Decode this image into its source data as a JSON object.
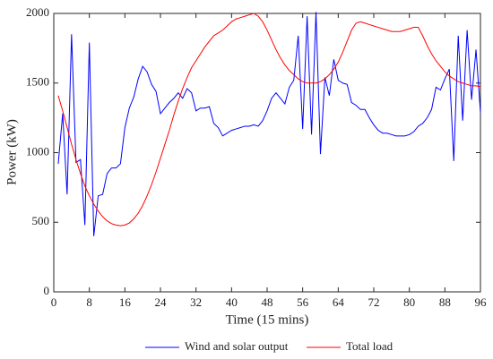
{
  "chart_data": {
    "type": "line",
    "xlabel": "Time (15 mins)",
    "ylabel": "Power (kW)",
    "x": [
      1,
      2,
      3,
      4,
      5,
      6,
      7,
      8,
      9,
      10,
      11,
      12,
      13,
      14,
      15,
      16,
      17,
      18,
      19,
      20,
      21,
      22,
      23,
      24,
      25,
      26,
      27,
      28,
      29,
      30,
      31,
      32,
      33,
      34,
      35,
      36,
      37,
      38,
      39,
      40,
      41,
      42,
      43,
      44,
      45,
      46,
      47,
      48,
      49,
      50,
      51,
      52,
      53,
      54,
      55,
      56,
      57,
      58,
      59,
      60,
      61,
      62,
      63,
      64,
      65,
      66,
      67,
      68,
      69,
      70,
      71,
      72,
      73,
      74,
      75,
      76,
      77,
      78,
      79,
      80,
      81,
      82,
      83,
      84,
      85,
      86,
      87,
      88,
      89,
      90,
      91,
      92,
      93,
      94,
      95,
      96
    ],
    "series": [
      {
        "name": "Wind and solar output",
        "color": "#0000ff",
        "values": [
          920,
          1280,
          700,
          1850,
          930,
          950,
          480,
          1790,
          400,
          690,
          700,
          850,
          890,
          890,
          920,
          1180,
          1320,
          1400,
          1530,
          1620,
          1580,
          1490,
          1440,
          1280,
          1320,
          1360,
          1390,
          1430,
          1390,
          1460,
          1430,
          1300,
          1320,
          1320,
          1330,
          1210,
          1180,
          1120,
          1140,
          1160,
          1170,
          1180,
          1190,
          1190,
          1200,
          1190,
          1230,
          1300,
          1390,
          1430,
          1390,
          1350,
          1470,
          1520,
          1840,
          1170,
          1980,
          1130,
          2010,
          990,
          1540,
          1410,
          1670,
          1520,
          1500,
          1490,
          1360,
          1340,
          1310,
          1310,
          1250,
          1200,
          1160,
          1140,
          1140,
          1130,
          1120,
          1120,
          1120,
          1130,
          1150,
          1190,
          1210,
          1250,
          1310,
          1470,
          1450,
          1530,
          1600,
          940,
          1840,
          1230,
          1880,
          1380,
          1740,
          1290
        ]
      },
      {
        "name": "Total load",
        "color": "#ff0000",
        "values": [
          1410,
          1300,
          1180,
          1060,
          950,
          850,
          760,
          690,
          630,
          580,
          540,
          510,
          490,
          480,
          475,
          480,
          495,
          525,
          565,
          620,
          690,
          770,
          860,
          960,
          1060,
          1160,
          1270,
          1370,
          1460,
          1540,
          1610,
          1660,
          1710,
          1760,
          1800,
          1840,
          1860,
          1880,
          1910,
          1940,
          1960,
          1970,
          1980,
          1990,
          2000,
          1980,
          1940,
          1880,
          1810,
          1740,
          1680,
          1630,
          1590,
          1560,
          1530,
          1510,
          1500,
          1500,
          1500,
          1510,
          1530,
          1560,
          1600,
          1650,
          1720,
          1800,
          1880,
          1930,
          1940,
          1930,
          1920,
          1910,
          1900,
          1890,
          1880,
          1870,
          1870,
          1870,
          1880,
          1890,
          1900,
          1900,
          1840,
          1770,
          1710,
          1660,
          1620,
          1580,
          1550,
          1530,
          1510,
          1500,
          1490,
          1480,
          1480,
          1475
        ]
      }
    ],
    "xlim": [
      0,
      96
    ],
    "xticks": [
      0,
      8,
      16,
      24,
      32,
      40,
      48,
      56,
      64,
      72,
      80,
      88,
      96
    ],
    "ylim": [
      0,
      2000
    ],
    "yticks": [
      0,
      500,
      1000,
      1500,
      2000
    ],
    "grid": false,
    "legend": "bottom"
  }
}
